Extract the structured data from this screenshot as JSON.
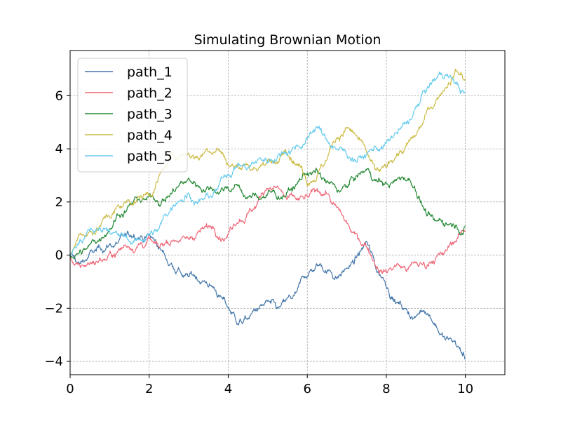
{
  "chart_data": {
    "type": "line",
    "title": "Simulating Brownian Motion",
    "xlabel": "",
    "ylabel": "",
    "xlim": [
      0,
      11
    ],
    "ylim": [
      -4.5,
      7.7
    ],
    "xticks": [
      0,
      2,
      4,
      6,
      8,
      10
    ],
    "yticks": [
      -4,
      -2,
      0,
      2,
      4,
      6
    ],
    "grid": true,
    "legend": "top-left",
    "series": [
      {
        "name": "path_1",
        "color": "#4477aa",
        "points": [
          [
            0,
            0.0
          ],
          [
            0.25,
            -0.3
          ],
          [
            0.5,
            0.1
          ],
          [
            0.75,
            0.3
          ],
          [
            1.0,
            0.4
          ],
          [
            1.25,
            0.6
          ],
          [
            1.5,
            0.7
          ],
          [
            1.75,
            0.6
          ],
          [
            2.0,
            0.8
          ],
          [
            2.25,
            0.3
          ],
          [
            2.5,
            -0.4
          ],
          [
            2.75,
            -0.5
          ],
          [
            3.0,
            -0.8
          ],
          [
            3.25,
            -1.0
          ],
          [
            3.5,
            -1.2
          ],
          [
            3.75,
            -1.5
          ],
          [
            4.0,
            -2.0
          ],
          [
            4.25,
            -2.6
          ],
          [
            4.5,
            -2.4
          ],
          [
            4.75,
            -2.0
          ],
          [
            5.0,
            -1.7
          ],
          [
            5.25,
            -2.0
          ],
          [
            5.5,
            -1.6
          ],
          [
            5.75,
            -1.3
          ],
          [
            6.0,
            -0.8
          ],
          [
            6.25,
            -0.4
          ],
          [
            6.5,
            -0.6
          ],
          [
            6.75,
            -0.9
          ],
          [
            7.0,
            -0.5
          ],
          [
            7.25,
            -0.1
          ],
          [
            7.5,
            0.5
          ],
          [
            7.75,
            -0.6
          ],
          [
            8.0,
            -1.2
          ],
          [
            8.25,
            -1.8
          ],
          [
            8.5,
            -2.0
          ],
          [
            8.75,
            -2.3
          ],
          [
            9.0,
            -2.2
          ],
          [
            9.25,
            -2.6
          ],
          [
            9.5,
            -3.2
          ],
          [
            9.75,
            -3.3
          ],
          [
            10.0,
            -3.9
          ]
        ]
      },
      {
        "name": "path_2",
        "color": "#ee6677",
        "points": [
          [
            0,
            0.0
          ],
          [
            0.25,
            -0.4
          ],
          [
            0.5,
            -0.3
          ],
          [
            0.75,
            -0.1
          ],
          [
            1.0,
            0.1
          ],
          [
            1.25,
            0.2
          ],
          [
            1.5,
            0.3
          ],
          [
            1.75,
            0.4
          ],
          [
            2.0,
            0.6
          ],
          [
            2.25,
            0.3
          ],
          [
            2.5,
            0.4
          ],
          [
            2.75,
            0.5
          ],
          [
            3.0,
            0.6
          ],
          [
            3.25,
            0.9
          ],
          [
            3.5,
            1.1
          ],
          [
            3.75,
            0.6
          ],
          [
            4.0,
            0.8
          ],
          [
            4.25,
            1.2
          ],
          [
            4.5,
            1.6
          ],
          [
            4.75,
            2.0
          ],
          [
            5.0,
            2.5
          ],
          [
            5.25,
            2.6
          ],
          [
            5.5,
            2.2
          ],
          [
            5.75,
            2.1
          ],
          [
            6.0,
            2.2
          ],
          [
            6.25,
            2.5
          ],
          [
            6.5,
            2.3
          ],
          [
            6.75,
            1.8
          ],
          [
            7.0,
            1.2
          ],
          [
            7.25,
            0.8
          ],
          [
            7.5,
            0.3
          ],
          [
            7.75,
            -0.5
          ],
          [
            8.0,
            -0.6
          ],
          [
            8.25,
            -0.4
          ],
          [
            8.5,
            -0.6
          ],
          [
            8.75,
            -0.3
          ],
          [
            9.0,
            -0.5
          ],
          [
            9.25,
            -0.1
          ],
          [
            9.5,
            0.2
          ],
          [
            9.75,
            0.5
          ],
          [
            10.0,
            0.9
          ]
        ]
      },
      {
        "name": "path_3",
        "color": "#228833",
        "points": [
          [
            0,
            0.0
          ],
          [
            0.25,
            0.2
          ],
          [
            0.5,
            0.4
          ],
          [
            0.75,
            0.6
          ],
          [
            1.0,
            1.0
          ],
          [
            1.25,
            1.5
          ],
          [
            1.5,
            1.9
          ],
          [
            1.75,
            2.1
          ],
          [
            2.0,
            2.2
          ],
          [
            2.25,
            1.9
          ],
          [
            2.5,
            2.2
          ],
          [
            2.75,
            2.6
          ],
          [
            3.0,
            2.9
          ],
          [
            3.25,
            2.6
          ],
          [
            3.5,
            2.5
          ],
          [
            3.75,
            2.3
          ],
          [
            4.0,
            2.5
          ],
          [
            4.25,
            2.6
          ],
          [
            4.5,
            2.2
          ],
          [
            4.75,
            2.2
          ],
          [
            5.0,
            2.3
          ],
          [
            5.25,
            2.1
          ],
          [
            5.5,
            2.4
          ],
          [
            5.75,
            2.7
          ],
          [
            6.0,
            3.1
          ],
          [
            6.25,
            3.2
          ],
          [
            6.5,
            2.8
          ],
          [
            6.75,
            2.4
          ],
          [
            7.0,
            2.6
          ],
          [
            7.25,
            3.0
          ],
          [
            7.5,
            3.2
          ],
          [
            7.75,
            2.8
          ],
          [
            8.0,
            2.7
          ],
          [
            8.25,
            2.8
          ],
          [
            8.5,
            2.8
          ],
          [
            8.75,
            2.4
          ],
          [
            9.0,
            1.6
          ],
          [
            9.25,
            1.3
          ],
          [
            9.5,
            1.2
          ],
          [
            9.75,
            1.1
          ],
          [
            10.0,
            1.1
          ]
        ]
      },
      {
        "name": "path_4",
        "color": "#ccbb44",
        "points": [
          [
            0,
            0.0
          ],
          [
            0.25,
            0.8
          ],
          [
            0.5,
            0.9
          ],
          [
            0.75,
            1.1
          ],
          [
            1.0,
            1.4
          ],
          [
            1.25,
            1.8
          ],
          [
            1.5,
            2.0
          ],
          [
            1.75,
            2.2
          ],
          [
            2.0,
            2.3
          ],
          [
            2.25,
            3.0
          ],
          [
            2.5,
            3.6
          ],
          [
            2.75,
            3.7
          ],
          [
            3.0,
            3.8
          ],
          [
            3.25,
            3.6
          ],
          [
            3.5,
            3.9
          ],
          [
            3.75,
            4.0
          ],
          [
            4.0,
            3.4
          ],
          [
            4.25,
            3.3
          ],
          [
            4.5,
            3.4
          ],
          [
            4.75,
            3.2
          ],
          [
            5.0,
            3.6
          ],
          [
            5.25,
            3.5
          ],
          [
            5.5,
            3.8
          ],
          [
            5.75,
            3.4
          ],
          [
            6.0,
            2.6
          ],
          [
            6.25,
            3.0
          ],
          [
            6.5,
            3.6
          ],
          [
            6.75,
            4.4
          ],
          [
            7.0,
            4.8
          ],
          [
            7.25,
            4.5
          ],
          [
            7.5,
            3.9
          ],
          [
            7.75,
            3.2
          ],
          [
            8.0,
            3.3
          ],
          [
            8.25,
            3.7
          ],
          [
            8.5,
            4.1
          ],
          [
            8.75,
            4.5
          ],
          [
            9.0,
            5.3
          ],
          [
            9.25,
            5.8
          ],
          [
            9.5,
            6.3
          ],
          [
            9.75,
            7.0
          ],
          [
            10.0,
            6.6
          ]
        ]
      },
      {
        "name": "path_5",
        "color": "#66ccee",
        "points": [
          [
            0,
            0.0
          ],
          [
            0.25,
            0.6
          ],
          [
            0.5,
            0.9
          ],
          [
            0.75,
            1.0
          ],
          [
            1.0,
            0.9
          ],
          [
            1.25,
            0.7
          ],
          [
            1.5,
            0.5
          ],
          [
            1.75,
            0.6
          ],
          [
            2.0,
            0.8
          ],
          [
            2.25,
            1.0
          ],
          [
            2.5,
            1.6
          ],
          [
            2.75,
            2.0
          ],
          [
            3.0,
            2.3
          ],
          [
            3.25,
            2.0
          ],
          [
            3.5,
            2.2
          ],
          [
            3.75,
            2.6
          ],
          [
            4.0,
            3.0
          ],
          [
            4.25,
            3.4
          ],
          [
            4.5,
            3.3
          ],
          [
            4.75,
            3.6
          ],
          [
            5.0,
            3.5
          ],
          [
            5.25,
            3.7
          ],
          [
            5.5,
            3.8
          ],
          [
            5.75,
            4.1
          ],
          [
            6.0,
            4.4
          ],
          [
            6.25,
            4.8
          ],
          [
            6.5,
            4.3
          ],
          [
            6.75,
            4.0
          ],
          [
            7.0,
            3.8
          ],
          [
            7.25,
            3.5
          ],
          [
            7.5,
            3.8
          ],
          [
            7.75,
            4.0
          ],
          [
            8.0,
            4.2
          ],
          [
            8.25,
            4.6
          ],
          [
            8.5,
            5.0
          ],
          [
            8.75,
            5.6
          ],
          [
            9.0,
            6.2
          ],
          [
            9.25,
            6.6
          ],
          [
            9.5,
            6.8
          ],
          [
            9.75,
            6.5
          ],
          [
            10.0,
            6.1
          ]
        ]
      }
    ]
  }
}
